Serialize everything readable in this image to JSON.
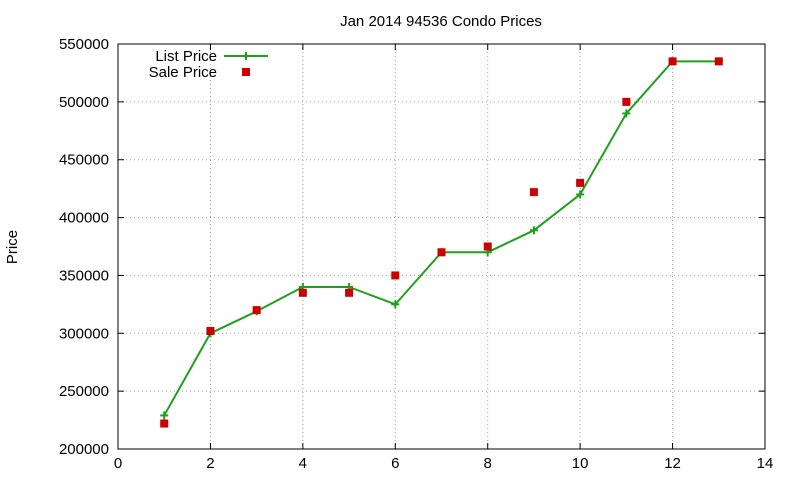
{
  "chart_data": {
    "type": "line",
    "title": "Jan 2014 94536 Condo Prices",
    "xlabel": "",
    "ylabel": "Price",
    "xlim": [
      0,
      14
    ],
    "ylim": [
      200000,
      550000
    ],
    "x_ticks": [
      0,
      2,
      4,
      6,
      8,
      10,
      12,
      14
    ],
    "y_ticks": [
      200000,
      250000,
      300000,
      350000,
      400000,
      450000,
      500000,
      550000
    ],
    "grid": true,
    "legend_position": "top-left",
    "series": [
      {
        "name": "List Price",
        "style": "lines+plus-markers",
        "color": "#1ea01e",
        "points": [
          {
            "x": 1,
            "y": 229000
          },
          {
            "x": 2,
            "y": 300000
          },
          {
            "x": 3,
            "y": 319000
          },
          {
            "x": 4,
            "y": 340000
          },
          {
            "x": 5,
            "y": 340000
          },
          {
            "x": 6,
            "y": 325000
          },
          {
            "x": 7,
            "y": 370000
          },
          {
            "x": 8,
            "y": 370000
          },
          {
            "x": 9,
            "y": 389000
          },
          {
            "x": 10,
            "y": 420000
          },
          {
            "x": 11,
            "y": 490000
          },
          {
            "x": 12,
            "y": 535000
          },
          {
            "x": 13,
            "y": 535000
          }
        ]
      },
      {
        "name": "Sale Price",
        "style": "square-points",
        "color": "#cc0000",
        "points": [
          {
            "x": 1,
            "y": 222000
          },
          {
            "x": 2,
            "y": 302000
          },
          {
            "x": 3,
            "y": 320000
          },
          {
            "x": 4,
            "y": 335000
          },
          {
            "x": 5,
            "y": 335000
          },
          {
            "x": 6,
            "y": 350000
          },
          {
            "x": 7,
            "y": 370000
          },
          {
            "x": 8,
            "y": 375000
          },
          {
            "x": 9,
            "y": 422000
          },
          {
            "x": 10,
            "y": 430000
          },
          {
            "x": 11,
            "y": 500000
          },
          {
            "x": 12,
            "y": 535000
          },
          {
            "x": 13,
            "y": 535000
          }
        ]
      }
    ]
  }
}
